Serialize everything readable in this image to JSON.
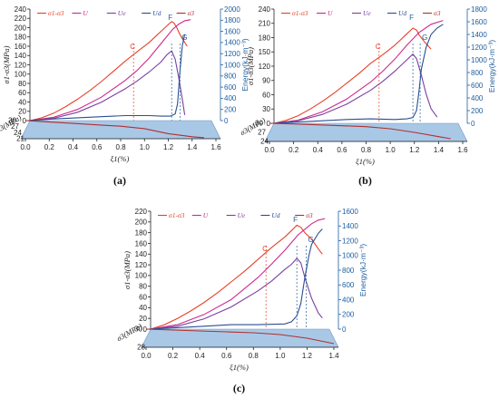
{
  "chart_data": [
    {
      "type": "line",
      "panel_label": "(a)",
      "xlabel": "ξ1(%)",
      "ylabel": "σ1-σ3(MPa)",
      "y2label": "Energy(kJ·m⁻³)",
      "sigma3_label": "σ3(MPa)",
      "x_ticks": [
        "0.0",
        "0.2",
        "0.4",
        "0.6",
        "0.8",
        "1.0",
        "1.2",
        "1.4",
        "1.6"
      ],
      "y_ticks": [
        "0",
        "20",
        "40",
        "60",
        "80",
        "100",
        "120",
        "140",
        "160",
        "180",
        "200",
        "220",
        "240"
      ],
      "y2_ticks": [
        "0",
        "200",
        "400",
        "600",
        "800",
        "1000",
        "1200",
        "1400",
        "1600",
        "1800",
        "2000"
      ],
      "sigma3_ticks": [
        "21",
        "24",
        "27",
        "30"
      ],
      "xlim": [
        0,
        1.6
      ],
      "ylim": [
        0,
        240
      ],
      "y2lim": [
        0,
        2000
      ],
      "sigma3_lim": [
        21,
        30
      ],
      "legend": [
        "σ1-σ3",
        "U",
        "Ue",
        "Ud",
        "σ3"
      ],
      "points": {
        "C": 0.87,
        "F": 1.19,
        "G": 1.26
      },
      "series": [
        {
          "name": "σ1-σ3",
          "color": "#e8402a",
          "axis": "left",
          "x": [
            0,
            0.1,
            0.2,
            0.3,
            0.4,
            0.5,
            0.6,
            0.7,
            0.8,
            0.9,
            1.0,
            1.05,
            1.1,
            1.15,
            1.19,
            1.21,
            1.23,
            1.25,
            1.28,
            1.32
          ],
          "values": [
            0,
            6,
            16,
            30,
            46,
            64,
            84,
            106,
            128,
            148,
            168,
            180,
            192,
            204,
            213,
            210,
            202,
            190,
            176,
            160
          ]
        },
        {
          "name": "U",
          "color": "#cc2a8a",
          "axis": "right",
          "x": [
            0,
            0.2,
            0.4,
            0.6,
            0.8,
            0.9,
            1.0,
            1.1,
            1.2,
            1.25,
            1.3,
            1.35
          ],
          "values": [
            0,
            60,
            200,
            420,
            720,
            900,
            1120,
            1380,
            1640,
            1730,
            1790,
            1810
          ]
        },
        {
          "name": "Ue",
          "color": "#7a3fa0",
          "axis": "right",
          "x": [
            0,
            0.2,
            0.4,
            0.6,
            0.8,
            0.9,
            1.0,
            1.1,
            1.15,
            1.19,
            1.22,
            1.25,
            1.28,
            1.3
          ],
          "values": [
            0,
            40,
            150,
            330,
            570,
            710,
            870,
            1050,
            1180,
            1250,
            1100,
            760,
            380,
            100
          ]
        },
        {
          "name": "Ud",
          "color": "#2a4f90",
          "axis": "right",
          "x": [
            0,
            0.2,
            0.4,
            0.6,
            0.8,
            1.0,
            1.1,
            1.18,
            1.22,
            1.24,
            1.26,
            1.28,
            1.3
          ],
          "values": [
            0,
            30,
            50,
            70,
            90,
            90,
            80,
            80,
            120,
            300,
            900,
            1350,
            1550
          ]
        },
        {
          "name": "σ3",
          "color": "#b03030",
          "axis": "sigma3",
          "x": [
            0,
            0.2,
            0.4,
            0.6,
            0.8,
            1.0,
            1.2,
            1.4,
            1.5
          ],
          "values": [
            30,
            29.3,
            28.6,
            27.9,
            27.2,
            26.0,
            23.5,
            22.0,
            21.5
          ]
        }
      ]
    },
    {
      "type": "line",
      "panel_label": "(b)",
      "xlabel": "ξ1(%)",
      "ylabel": "σ1-σ3(MPa)",
      "y2label": "Energy(kJ·m⁻³)",
      "sigma3_label": "σ3(MPa)",
      "x_ticks": [
        "0.0",
        "0.2",
        "0.4",
        "0.6",
        "0.8",
        "1.0",
        "1.2",
        "1.4",
        "1.6"
      ],
      "y_ticks": [
        "0",
        "30",
        "60",
        "90",
        "120",
        "150",
        "180",
        "210",
        "240"
      ],
      "y2_ticks": [
        "0",
        "200",
        "400",
        "600",
        "800",
        "1000",
        "1200",
        "1400",
        "1600",
        "1800"
      ],
      "sigma3_ticks": [
        "24",
        "27",
        "30"
      ],
      "xlim": [
        0,
        1.6
      ],
      "ylim": [
        0,
        240
      ],
      "y2lim": [
        0,
        1800
      ],
      "sigma3_lim": [
        24,
        30
      ],
      "legend": [
        "σ1-σ3",
        "U",
        "Ue",
        "Ud",
        "σ3"
      ],
      "points": {
        "C": 0.87,
        "F": 1.15,
        "G": 1.21
      },
      "series": [
        {
          "name": "σ1-σ3",
          "color": "#e8402a",
          "axis": "left",
          "x": [
            0,
            0.1,
            0.2,
            0.3,
            0.4,
            0.5,
            0.6,
            0.7,
            0.8,
            0.9,
            1.0,
            1.05,
            1.1,
            1.15,
            1.18,
            1.2,
            1.25,
            1.3
          ],
          "values": [
            0,
            6,
            16,
            30,
            46,
            64,
            84,
            104,
            126,
            144,
            164,
            176,
            188,
            200,
            196,
            186,
            170,
            156
          ]
        },
        {
          "name": "U",
          "color": "#cc2a8a",
          "axis": "right",
          "x": [
            0,
            0.2,
            0.4,
            0.6,
            0.8,
            0.9,
            1.0,
            1.1,
            1.2,
            1.3,
            1.4
          ],
          "values": [
            0,
            50,
            180,
            380,
            650,
            820,
            1010,
            1230,
            1430,
            1560,
            1620
          ]
        },
        {
          "name": "Ue",
          "color": "#7a3fa0",
          "axis": "right",
          "x": [
            0,
            0.2,
            0.4,
            0.6,
            0.8,
            0.9,
            1.0,
            1.1,
            1.15,
            1.18,
            1.22,
            1.26,
            1.3,
            1.35
          ],
          "values": [
            0,
            40,
            140,
            300,
            520,
            660,
            820,
            1000,
            1090,
            1020,
            760,
            460,
            230,
            100
          ]
        },
        {
          "name": "Ud",
          "color": "#2a4f90",
          "axis": "right",
          "x": [
            0,
            0.2,
            0.4,
            0.6,
            0.8,
            1.0,
            1.1,
            1.15,
            1.18,
            1.2,
            1.22,
            1.26,
            1.3,
            1.35,
            1.4
          ],
          "values": [
            0,
            20,
            40,
            60,
            70,
            60,
            70,
            90,
            200,
            500,
            850,
            1200,
            1400,
            1500,
            1560
          ]
        },
        {
          "name": "σ3",
          "color": "#b03030",
          "axis": "sigma3",
          "x": [
            0,
            0.2,
            0.4,
            0.6,
            0.8,
            1.0,
            1.2,
            1.4,
            1.5
          ],
          "values": [
            30,
            29.8,
            29.5,
            29.2,
            28.9,
            28.2,
            27.0,
            25.6,
            24.9
          ]
        }
      ]
    },
    {
      "type": "line",
      "panel_label": "(c)",
      "xlabel": "ξ1(%)",
      "ylabel": "σ1-σ3(MPa)",
      "y2label": "Energy(kJ·m⁻³)",
      "sigma3_label": "σ3(MPa)",
      "x_ticks": [
        "0.0",
        "0.2",
        "0.4",
        "0.6",
        "0.8",
        "1.0",
        "1.2",
        "1.4"
      ],
      "y_ticks": [
        "0",
        "20",
        "40",
        "60",
        "80",
        "100",
        "120",
        "140",
        "160",
        "180",
        "200",
        "220"
      ],
      "y2_ticks": [
        "0",
        "200",
        "400",
        "600",
        "800",
        "1000",
        "1200",
        "1400",
        "1600"
      ],
      "sigma3_ticks": [
        "28",
        "30"
      ],
      "xlim": [
        0,
        1.4
      ],
      "ylim": [
        0,
        220
      ],
      "y2lim": [
        0,
        1600
      ],
      "sigma3_lim": [
        28,
        30
      ],
      "legend": [
        "σ1-σ3",
        "U",
        "Ue",
        "Ud",
        "σ3"
      ],
      "points": {
        "C": 0.86,
        "F": 1.09,
        "G": 1.16
      },
      "series": [
        {
          "name": "σ1-σ3",
          "color": "#e8402a",
          "axis": "left",
          "x": [
            0,
            0.1,
            0.2,
            0.3,
            0.4,
            0.5,
            0.6,
            0.7,
            0.8,
            0.9,
            1.0,
            1.05,
            1.09,
            1.12,
            1.15,
            1.2,
            1.25,
            1.28
          ],
          "values": [
            0,
            8,
            20,
            34,
            50,
            68,
            88,
            108,
            130,
            152,
            172,
            184,
            194,
            190,
            180,
            168,
            150,
            140
          ]
        },
        {
          "name": "U",
          "color": "#cc2a8a",
          "axis": "right",
          "x": [
            0,
            0.2,
            0.4,
            0.6,
            0.8,
            0.9,
            1.0,
            1.1,
            1.2,
            1.25,
            1.3
          ],
          "values": [
            0,
            60,
            200,
            400,
            700,
            880,
            1070,
            1280,
            1430,
            1480,
            1500
          ]
        },
        {
          "name": "Ue",
          "color": "#7a3fa0",
          "axis": "right",
          "x": [
            0,
            0.2,
            0.4,
            0.6,
            0.8,
            0.9,
            1.0,
            1.05,
            1.09,
            1.12,
            1.15,
            1.2,
            1.25,
            1.28
          ],
          "values": [
            0,
            40,
            140,
            300,
            520,
            650,
            810,
            880,
            960,
            900,
            700,
            420,
            220,
            150
          ]
        },
        {
          "name": "Ud",
          "color": "#2a4f90",
          "axis": "right",
          "x": [
            0,
            0.2,
            0.4,
            0.6,
            0.8,
            1.0,
            1.05,
            1.09,
            1.12,
            1.15,
            1.18,
            1.2,
            1.25,
            1.28
          ],
          "values": [
            0,
            20,
            40,
            60,
            60,
            70,
            100,
            180,
            350,
            700,
            1000,
            1150,
            1300,
            1360
          ]
        },
        {
          "name": "σ3",
          "color": "#b03030",
          "axis": "sigma3",
          "x": [
            0,
            0.2,
            0.4,
            0.6,
            0.8,
            1.0,
            1.1,
            1.2,
            1.3,
            1.4
          ],
          "values": [
            30,
            29.9,
            29.8,
            29.7,
            29.6,
            29.4,
            29.2,
            29.0,
            28.7,
            28.4
          ]
        }
      ]
    }
  ]
}
